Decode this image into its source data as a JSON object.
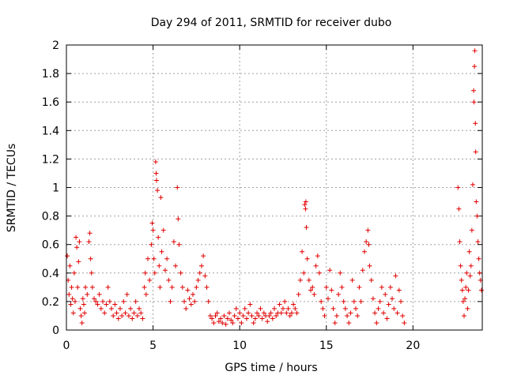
{
  "chart_data": {
    "type": "scatter",
    "title": "Day 294 of 2011, SRMTID for receiver dubo",
    "xlabel": "GPS time / hours",
    "ylabel": "SRMTID / TECUs",
    "xlim": [
      0,
      24
    ],
    "ylim": [
      0,
      2
    ],
    "xticks": [
      0,
      5,
      10,
      15,
      20
    ],
    "yticks": [
      0,
      0.2,
      0.4,
      0.6,
      0.8,
      1,
      1.2,
      1.4,
      1.6,
      1.8,
      2
    ],
    "xtick_labels": [
      "0",
      "5",
      "10",
      "15",
      "20"
    ],
    "ytick_labels": [
      "0",
      "0.2",
      "0.4",
      "0.6",
      "0.8",
      "1",
      "1.2",
      "1.4",
      "1.6",
      "1.8",
      "2"
    ],
    "grid": true,
    "marker": "+",
    "series": [
      {
        "name": "SRMTID",
        "color": "#e00000",
        "points": [
          [
            0.05,
            0.52
          ],
          [
            0.1,
            0.35
          ],
          [
            0.15,
            0.25
          ],
          [
            0.2,
            0.45
          ],
          [
            0.25,
            0.18
          ],
          [
            0.3,
            0.3
          ],
          [
            0.35,
            0.22
          ],
          [
            0.4,
            0.12
          ],
          [
            0.45,
            0.4
          ],
          [
            0.5,
            0.2
          ],
          [
            0.55,
            0.65
          ],
          [
            0.6,
            0.58
          ],
          [
            0.65,
            0.3
          ],
          [
            0.7,
            0.48
          ],
          [
            0.75,
            0.62
          ],
          [
            0.8,
            0.15
          ],
          [
            0.85,
            0.1
          ],
          [
            0.9,
            0.05
          ],
          [
            0.95,
            0.22
          ],
          [
            1.0,
            0.18
          ],
          [
            1.05,
            0.12
          ],
          [
            1.1,
            0.3
          ],
          [
            1.2,
            0.25
          ],
          [
            1.3,
            0.62
          ],
          [
            1.35,
            0.68
          ],
          [
            1.4,
            0.5
          ],
          [
            1.45,
            0.4
          ],
          [
            1.5,
            0.3
          ],
          [
            1.6,
            0.22
          ],
          [
            1.7,
            0.2
          ],
          [
            1.8,
            0.18
          ],
          [
            1.9,
            0.25
          ],
          [
            2.0,
            0.15
          ],
          [
            2.1,
            0.2
          ],
          [
            2.2,
            0.12
          ],
          [
            2.3,
            0.18
          ],
          [
            2.4,
            0.3
          ],
          [
            2.5,
            0.2
          ],
          [
            2.6,
            0.15
          ],
          [
            2.7,
            0.1
          ],
          [
            2.8,
            0.18
          ],
          [
            2.9,
            0.12
          ],
          [
            3.0,
            0.08
          ],
          [
            3.1,
            0.15
          ],
          [
            3.2,
            0.1
          ],
          [
            3.3,
            0.2
          ],
          [
            3.4,
            0.12
          ],
          [
            3.5,
            0.25
          ],
          [
            3.6,
            0.1
          ],
          [
            3.7,
            0.15
          ],
          [
            3.8,
            0.08
          ],
          [
            3.9,
            0.12
          ],
          [
            4.0,
            0.2
          ],
          [
            4.1,
            0.1
          ],
          [
            4.2,
            0.15
          ],
          [
            4.3,
            0.12
          ],
          [
            4.4,
            0.08
          ],
          [
            4.5,
            0.3
          ],
          [
            4.55,
            0.4
          ],
          [
            4.6,
            0.25
          ],
          [
            4.7,
            0.5
          ],
          [
            4.8,
            0.35
          ],
          [
            4.9,
            0.6
          ],
          [
            4.95,
            0.75
          ],
          [
            5.0,
            0.7
          ],
          [
            5.05,
            0.5
          ],
          [
            5.1,
            0.4
          ],
          [
            5.15,
            1.18
          ],
          [
            5.18,
            1.1
          ],
          [
            5.2,
            1.05
          ],
          [
            5.25,
            0.98
          ],
          [
            5.3,
            0.65
          ],
          [
            5.35,
            0.45
          ],
          [
            5.4,
            0.3
          ],
          [
            5.45,
            0.93
          ],
          [
            5.5,
            0.55
          ],
          [
            5.6,
            0.7
          ],
          [
            5.7,
            0.42
          ],
          [
            5.8,
            0.5
          ],
          [
            5.9,
            0.35
          ],
          [
            6.0,
            0.2
          ],
          [
            6.1,
            0.3
          ],
          [
            6.2,
            0.62
          ],
          [
            6.3,
            0.45
          ],
          [
            6.4,
            1.0
          ],
          [
            6.45,
            0.78
          ],
          [
            6.5,
            0.6
          ],
          [
            6.6,
            0.4
          ],
          [
            6.7,
            0.3
          ],
          [
            6.8,
            0.2
          ],
          [
            6.9,
            0.15
          ],
          [
            7.0,
            0.28
          ],
          [
            7.1,
            0.22
          ],
          [
            7.2,
            0.18
          ],
          [
            7.3,
            0.25
          ],
          [
            7.4,
            0.2
          ],
          [
            7.5,
            0.3
          ],
          [
            7.6,
            0.35
          ],
          [
            7.7,
            0.4
          ],
          [
            7.8,
            0.45
          ],
          [
            7.9,
            0.52
          ],
          [
            8.0,
            0.38
          ],
          [
            8.1,
            0.3
          ],
          [
            8.2,
            0.2
          ],
          [
            8.3,
            0.1
          ],
          [
            8.4,
            0.08
          ],
          [
            8.5,
            0.05
          ],
          [
            8.6,
            0.1
          ],
          [
            8.7,
            0.12
          ],
          [
            8.8,
            0.06
          ],
          [
            8.9,
            0.08
          ],
          [
            9.0,
            0.05
          ],
          [
            9.1,
            0.1
          ],
          [
            9.2,
            0.04
          ],
          [
            9.3,
            0.08
          ],
          [
            9.4,
            0.12
          ],
          [
            9.5,
            0.07
          ],
          [
            9.6,
            0.05
          ],
          [
            9.7,
            0.1
          ],
          [
            9.8,
            0.15
          ],
          [
            9.9,
            0.08
          ],
          [
            10.0,
            0.12
          ],
          [
            10.1,
            0.05
          ],
          [
            10.2,
            0.1
          ],
          [
            10.3,
            0.15
          ],
          [
            10.4,
            0.08
          ],
          [
            10.5,
            0.12
          ],
          [
            10.6,
            0.18
          ],
          [
            10.7,
            0.1
          ],
          [
            10.8,
            0.05
          ],
          [
            10.9,
            0.08
          ],
          [
            11.0,
            0.12
          ],
          [
            11.1,
            0.1
          ],
          [
            11.2,
            0.15
          ],
          [
            11.3,
            0.08
          ],
          [
            11.4,
            0.12
          ],
          [
            11.5,
            0.1
          ],
          [
            11.6,
            0.06
          ],
          [
            11.7,
            0.1
          ],
          [
            11.8,
            0.12
          ],
          [
            11.9,
            0.08
          ],
          [
            12.0,
            0.15
          ],
          [
            12.1,
            0.1
          ],
          [
            12.2,
            0.12
          ],
          [
            12.3,
            0.18
          ],
          [
            12.4,
            0.12
          ],
          [
            12.5,
            0.15
          ],
          [
            12.6,
            0.2
          ],
          [
            12.7,
            0.12
          ],
          [
            12.8,
            0.15
          ],
          [
            12.9,
            0.1
          ],
          [
            13.0,
            0.12
          ],
          [
            13.1,
            0.18
          ],
          [
            13.2,
            0.15
          ],
          [
            13.3,
            0.12
          ],
          [
            13.4,
            0.25
          ],
          [
            13.5,
            0.35
          ],
          [
            13.6,
            0.55
          ],
          [
            13.7,
            0.4
          ],
          [
            13.75,
            0.88
          ],
          [
            13.8,
            0.85
          ],
          [
            13.82,
            0.9
          ],
          [
            13.85,
            0.72
          ],
          [
            13.9,
            0.5
          ],
          [
            14.0,
            0.35
          ],
          [
            14.1,
            0.28
          ],
          [
            14.2,
            0.3
          ],
          [
            14.3,
            0.25
          ],
          [
            14.4,
            0.45
          ],
          [
            14.5,
            0.52
          ],
          [
            14.6,
            0.4
          ],
          [
            14.7,
            0.2
          ],
          [
            14.8,
            0.15
          ],
          [
            14.9,
            0.1
          ],
          [
            15.0,
            0.3
          ],
          [
            15.1,
            0.22
          ],
          [
            15.2,
            0.42
          ],
          [
            15.3,
            0.28
          ],
          [
            15.4,
            0.15
          ],
          [
            15.5,
            0.05
          ],
          [
            15.6,
            0.1
          ],
          [
            15.7,
            0.25
          ],
          [
            15.8,
            0.4
          ],
          [
            15.9,
            0.3
          ],
          [
            16.0,
            0.2
          ],
          [
            16.1,
            0.15
          ],
          [
            16.2,
            0.1
          ],
          [
            16.3,
            0.05
          ],
          [
            16.4,
            0.12
          ],
          [
            16.5,
            0.35
          ],
          [
            16.6,
            0.2
          ],
          [
            16.7,
            0.15
          ],
          [
            16.8,
            0.1
          ],
          [
            16.9,
            0.3
          ],
          [
            17.0,
            0.2
          ],
          [
            17.1,
            0.42
          ],
          [
            17.2,
            0.55
          ],
          [
            17.3,
            0.62
          ],
          [
            17.4,
            0.7
          ],
          [
            17.45,
            0.6
          ],
          [
            17.5,
            0.45
          ],
          [
            17.6,
            0.35
          ],
          [
            17.7,
            0.22
          ],
          [
            17.8,
            0.12
          ],
          [
            17.9,
            0.05
          ],
          [
            18.0,
            0.15
          ],
          [
            18.1,
            0.2
          ],
          [
            18.2,
            0.3
          ],
          [
            18.3,
            0.12
          ],
          [
            18.4,
            0.25
          ],
          [
            18.5,
            0.08
          ],
          [
            18.6,
            0.18
          ],
          [
            18.7,
            0.3
          ],
          [
            18.8,
            0.22
          ],
          [
            18.9,
            0.15
          ],
          [
            19.0,
            0.38
          ],
          [
            19.1,
            0.12
          ],
          [
            19.2,
            0.28
          ],
          [
            19.3,
            0.2
          ],
          [
            19.4,
            0.1
          ],
          [
            19.5,
            0.05
          ],
          [
            22.6,
            1.0
          ],
          [
            22.65,
            0.85
          ],
          [
            22.7,
            0.62
          ],
          [
            22.75,
            0.45
          ],
          [
            22.8,
            0.35
          ],
          [
            22.85,
            0.28
          ],
          [
            22.9,
            0.2
          ],
          [
            22.95,
            0.1
          ],
          [
            23.0,
            0.22
          ],
          [
            23.05,
            0.3
          ],
          [
            23.1,
            0.4
          ],
          [
            23.15,
            0.15
          ],
          [
            23.2,
            0.28
          ],
          [
            23.25,
            0.55
          ],
          [
            23.3,
            0.38
          ],
          [
            23.35,
            0.45
          ],
          [
            23.4,
            0.7
          ],
          [
            23.45,
            1.02
          ],
          [
            23.5,
            1.68
          ],
          [
            23.52,
            1.6
          ],
          [
            23.55,
            1.85
          ],
          [
            23.57,
            1.96
          ],
          [
            23.6,
            1.45
          ],
          [
            23.62,
            1.25
          ],
          [
            23.65,
            0.9
          ],
          [
            23.7,
            0.8
          ],
          [
            23.75,
            0.62
          ],
          [
            23.8,
            0.5
          ],
          [
            23.85,
            0.4
          ],
          [
            23.9,
            0.35
          ],
          [
            23.95,
            0.28
          ]
        ]
      }
    ]
  }
}
